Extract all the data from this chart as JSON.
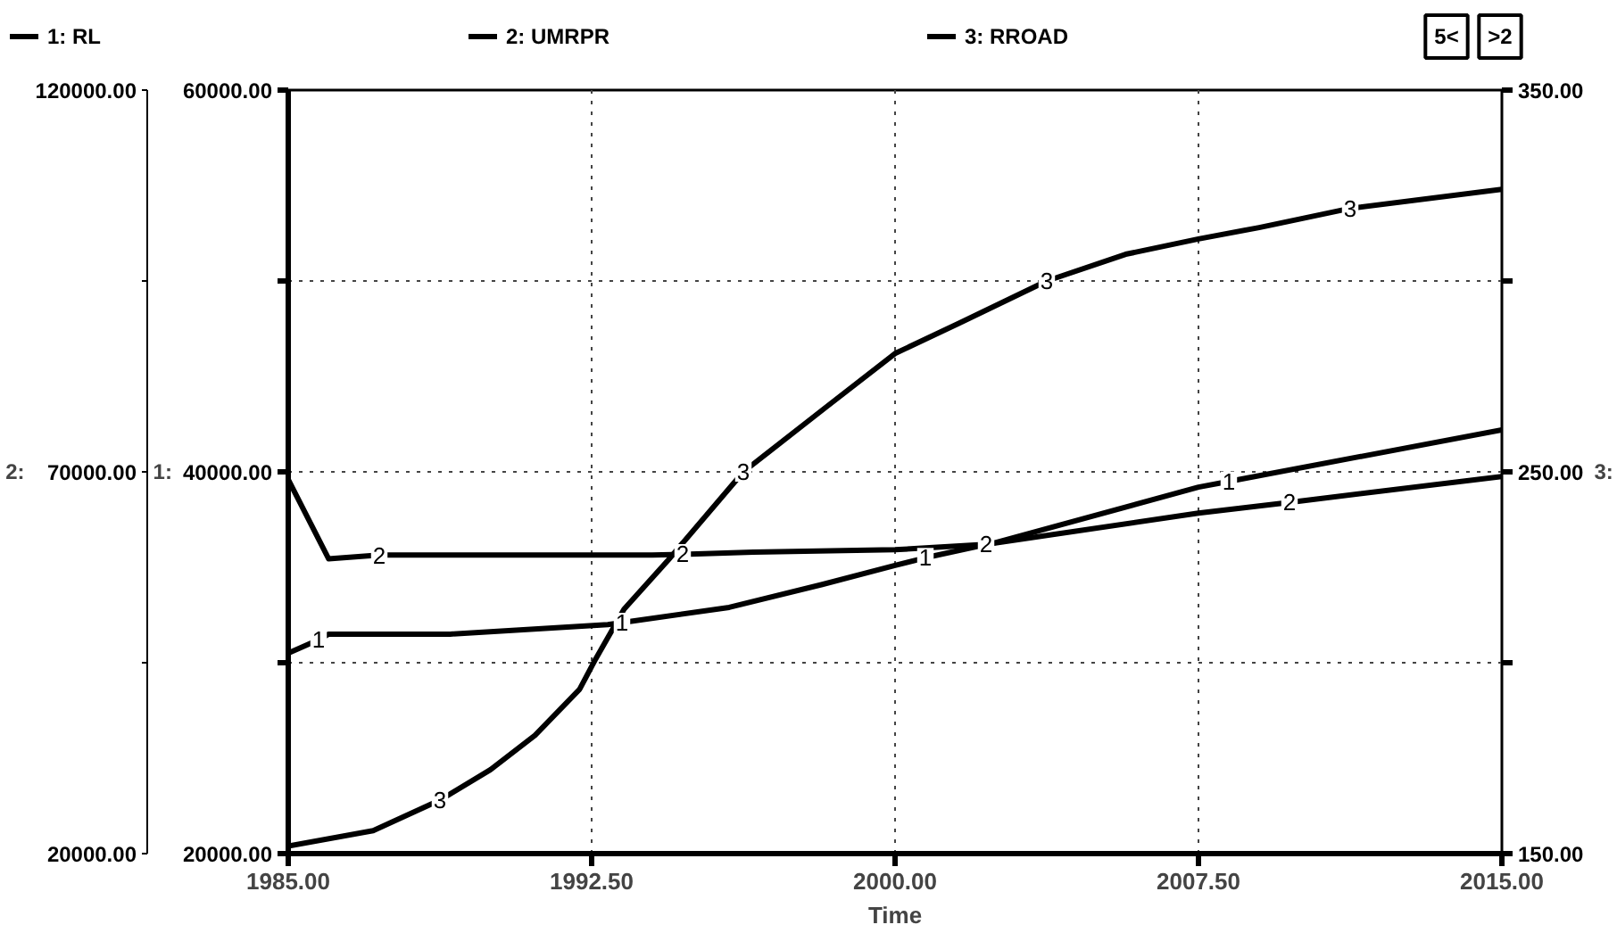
{
  "chart_data": {
    "type": "line",
    "xlabel": "Time",
    "ylabel": "1:",
    "y2label": "2:",
    "y3label": "3:",
    "xlim": [
      1985,
      2015
    ],
    "xticks": [
      {
        "value": 1985,
        "label": "1985.00"
      },
      {
        "value": 1992.5,
        "label": "1992.50"
      },
      {
        "value": 2000,
        "label": "2000.00"
      },
      {
        "value": 2007.5,
        "label": "2007.50"
      },
      {
        "value": 2015,
        "label": "2015.00"
      }
    ],
    "ylim": [
      20000,
      60000
    ],
    "yticks": [
      {
        "value": 20000,
        "label": "20000.00"
      },
      {
        "value": 30000,
        "label": null
      },
      {
        "value": 40000,
        "label": "40000.00"
      },
      {
        "value": 50000,
        "label": null
      },
      {
        "value": 60000,
        "label": "60000.00"
      }
    ],
    "y2lim": [
      20000,
      120000
    ],
    "y2ticks": [
      {
        "value": 20000,
        "label": "20000.00"
      },
      {
        "value": 45000,
        "label": null
      },
      {
        "value": 70000,
        "label": "70000.00"
      },
      {
        "value": 95000,
        "label": null
      },
      {
        "value": 120000,
        "label": "120000.00"
      }
    ],
    "y3lim": [
      150,
      350
    ],
    "y3ticks": [
      {
        "value": 150,
        "label": "150.00"
      },
      {
        "value": 200,
        "label": null
      },
      {
        "value": 250,
        "label": "250.00"
      },
      {
        "value": 300,
        "label": null
      },
      {
        "value": 350,
        "label": "350.00"
      }
    ],
    "grid": true,
    "legend": "top",
    "line_style": "solid",
    "annotations": [
      "5<",
      ">2",
      {
        "text": "1",
        "x": 1985.75,
        "y": 31200
      },
      {
        "text": "1",
        "x": 1993.25,
        "y": 32100
      },
      {
        "text": "1",
        "x": 2000.75,
        "y": 35500
      },
      {
        "text": "1",
        "x": 2008.25,
        "y": 39500
      },
      {
        "text": "2",
        "x": 1987.25,
        "y": 35600
      },
      {
        "text": "2",
        "x": 1994.75,
        "y": 35700
      },
      {
        "text": "2",
        "x": 2002.25,
        "y": 36200
      },
      {
        "text": "2",
        "x": 2009.75,
        "y": 38400
      },
      {
        "text": "3",
        "x": 1988.75,
        "y": 22800
      },
      {
        "text": "3",
        "x": 1996.25,
        "y": 40000
      },
      {
        "text": "3",
        "x": 2003.75,
        "y": 50000
      },
      {
        "text": "3",
        "x": 2011.25,
        "y": 53800
      }
    ],
    "series": [
      {
        "name": "1: RL",
        "color": "#000000",
        "x": [
          1985,
          1985.75,
          1986,
          1989,
          1992.9,
          1993.25,
          1995.9,
          1998.2,
          2000,
          2000.75,
          2002.5,
          2007.5,
          2008.25,
          2015
        ],
        "values": [
          30500,
          31200,
          31500,
          31500,
          32000,
          32100,
          32900,
          34100,
          35100,
          35500,
          36300,
          39200,
          39500,
          42200
        ]
      },
      {
        "name": "2: UMRPR",
        "color": "#000000",
        "axis": "y2",
        "x": [
          1985,
          1986,
          1987.25,
          1994,
          1994.75,
          1996.5,
          2000,
          2002.25,
          2007.5,
          2009.75,
          2015
        ],
        "values": [
          69000,
          58600,
          59100,
          59100,
          59200,
          59500,
          59800,
          60500,
          64600,
          66000,
          69400
        ]
      },
      {
        "name": "3: RROAD",
        "color": "#000000",
        "axis": "y3",
        "x": [
          1985,
          1987.1,
          1988.75,
          1990,
          1991.1,
          1992.2,
          1992.6,
          1993.3,
          1994.4,
          1996.25,
          1998.3,
          2000,
          2001.6,
          2003.75,
          2005.7,
          2007.5,
          2009,
          2011.25,
          2015
        ],
        "values": [
          152,
          156,
          164,
          172,
          181,
          193,
          201,
          214,
          227,
          250,
          267,
          281,
          289,
          300,
          307,
          311,
          314,
          319,
          324
        ]
      }
    ]
  }
}
